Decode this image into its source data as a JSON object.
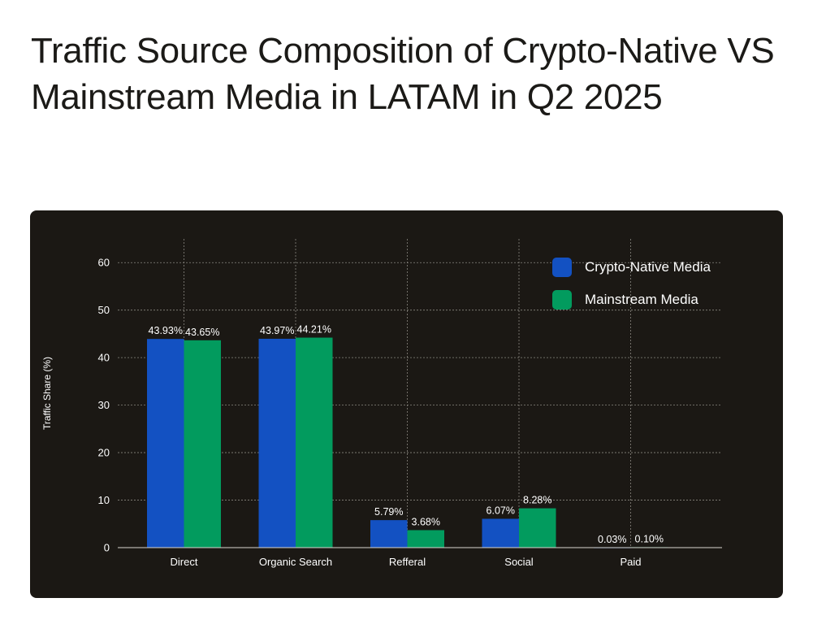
{
  "title": "Traffic Source Composition of Crypto-Native VS Mainstream Media in LATAM in Q2 2025",
  "colors": {
    "panel_bg": "#1b1814",
    "crypto_native": "#1351c2",
    "mainstream": "#029b5e",
    "grid": "#8a8780",
    "text": "#ffffff"
  },
  "chart_data": {
    "type": "bar",
    "title": "",
    "xlabel": "",
    "ylabel": "Traffic Share (%)",
    "ylim": [
      0,
      65
    ],
    "yticks": [
      0,
      10,
      20,
      30,
      40,
      50,
      60
    ],
    "grid": true,
    "legend_position": "top-right",
    "categories": [
      "Direct",
      "Organic Search",
      "Refferal",
      "Social",
      "Paid"
    ],
    "series": [
      {
        "name": "Crypto-Native Media",
        "color": "#1351c2",
        "values": [
          43.93,
          43.97,
          5.79,
          6.07,
          0.03
        ],
        "labels": [
          "43.93%",
          "43.97%",
          "5.79%",
          "6.07%",
          "0.03%"
        ]
      },
      {
        "name": "Mainstream Media",
        "color": "#029b5e",
        "values": [
          43.65,
          44.21,
          3.68,
          8.28,
          0.1
        ],
        "labels": [
          "43.65%",
          "44.21%",
          "3.68%",
          "8.28%",
          "0.10%"
        ]
      }
    ]
  }
}
